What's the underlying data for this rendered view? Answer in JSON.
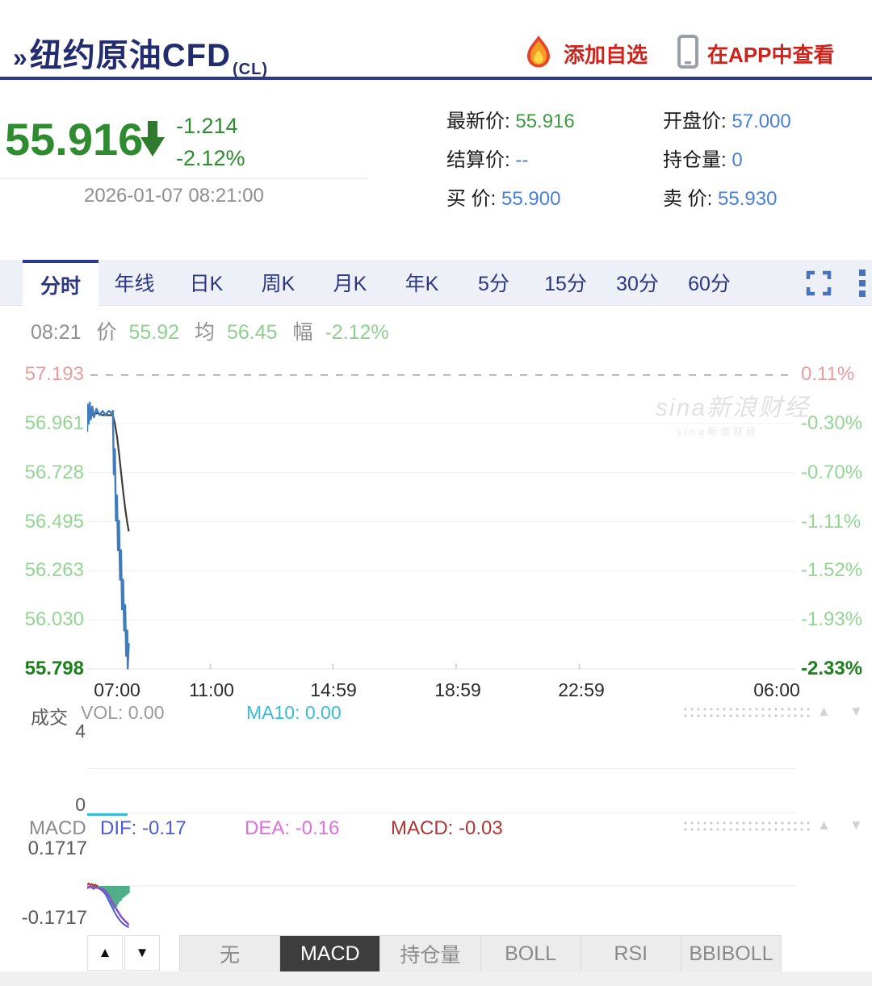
{
  "colors": {
    "navy": "#2b3a8c",
    "title_navy": "#232c6e",
    "red": "#cd231b",
    "green": "#2f8b2f",
    "light_green": "#93d693",
    "dark_green": "#1c801c",
    "pink": "#ec9c9c",
    "blue_value": "#4a7fd4",
    "cyan": "#36bdd8",
    "price_line": "#3f7cbe",
    "avg_line": "#3c3c3c",
    "dif_blue": "#4a5bd4",
    "dea_magenta": "#e06ee0",
    "macd_red": "#b03434",
    "hist_green": "#4fae88"
  },
  "header": {
    "title_prefix": "»",
    "title": "纽约原油CFD",
    "symbol": "(CL)",
    "add_watchlist": "添加自选",
    "view_in_app": "在APP中查看"
  },
  "quote": {
    "price": "55.916",
    "change": "-1.214",
    "change_pct": "-2.12%",
    "timestamp": "2026-01-07 08:21:00",
    "fields": [
      {
        "label": "最新价:",
        "value": "55.916",
        "color": "green"
      },
      {
        "label": "开盘价:",
        "value": "57.000",
        "color": "blue"
      },
      {
        "label": "结算价:",
        "value": "--",
        "color": "blue"
      },
      {
        "label": "持仓量:",
        "value": "0",
        "color": "blue"
      },
      {
        "label": "买  价:",
        "value": "55.900",
        "color": "blue"
      },
      {
        "label": "卖  价:",
        "value": "55.930",
        "color": "blue"
      }
    ]
  },
  "toolbar": {
    "tabs": [
      "分时",
      "年线",
      "日K",
      "周K",
      "月K",
      "年K",
      "5分",
      "15分",
      "30分",
      "60分"
    ],
    "active_tab": "分时"
  },
  "status_line": {
    "time": "08:21",
    "price_label": "价",
    "price": "55.92",
    "avg_label": "均",
    "avg": "56.45",
    "amp_label": "幅",
    "amplitude": "-2.12%"
  },
  "watermark": "sina新浪财经",
  "chart_data": [
    {
      "name": "main",
      "type": "line",
      "x_labels": [
        "07:00",
        "11:00",
        "14:59",
        "18:59",
        "22:59",
        "06:00"
      ],
      "y_ticks_left": [
        "57.193",
        "56.961",
        "56.728",
        "56.495",
        "56.263",
        "56.030",
        "55.798"
      ],
      "y_ticks_right": [
        "0.11%",
        "-0.30%",
        "-0.70%",
        "-1.11%",
        "-1.52%",
        "-1.93%",
        "-2.33%"
      ],
      "ylim": [
        55.798,
        57.193
      ],
      "x_range": [
        "07:00",
        "06:00"
      ],
      "ref_line": {
        "value": 57.193,
        "style": "dashed"
      },
      "series": [
        {
          "name": "price",
          "points": [
            [
              "07:00",
              56.92
            ],
            [
              "07:01",
              57.05
            ],
            [
              "07:03",
              56.96
            ],
            [
              "07:05",
              57.06
            ],
            [
              "07:07",
              56.98
            ],
            [
              "07:10",
              57.04
            ],
            [
              "07:13",
              56.99
            ],
            [
              "07:18",
              57.03
            ],
            [
              "07:24",
              57.0
            ],
            [
              "07:30",
              57.02
            ],
            [
              "07:36",
              57.0
            ],
            [
              "07:42",
              57.02
            ],
            [
              "07:47",
              57.01
            ],
            [
              "07:50",
              57.02
            ],
            [
              "07:52",
              56.72
            ],
            [
              "07:54",
              56.84
            ],
            [
              "07:56",
              56.5
            ],
            [
              "07:58",
              56.62
            ],
            [
              "08:00",
              56.36
            ],
            [
              "08:02",
              56.5
            ],
            [
              "08:04",
              56.22
            ],
            [
              "08:06",
              56.36
            ],
            [
              "08:08",
              56.08
            ],
            [
              "08:10",
              56.22
            ],
            [
              "08:12",
              55.98
            ],
            [
              "08:14",
              56.1
            ],
            [
              "08:16",
              55.86
            ],
            [
              "08:18",
              55.98
            ],
            [
              "08:19",
              55.8
            ],
            [
              "08:21",
              55.92
            ]
          ]
        },
        {
          "name": "average",
          "points": [
            [
              "07:02",
              56.99
            ],
            [
              "07:10",
              57.0
            ],
            [
              "07:20",
              57.01
            ],
            [
              "07:30",
              57.0
            ],
            [
              "07:40",
              57.0
            ],
            [
              "07:50",
              57.0
            ],
            [
              "07:54",
              56.96
            ],
            [
              "07:58",
              56.9
            ],
            [
              "08:02",
              56.82
            ],
            [
              "08:06",
              56.73
            ],
            [
              "08:10",
              56.64
            ],
            [
              "08:14",
              56.56
            ],
            [
              "08:18",
              56.49
            ],
            [
              "08:21",
              56.45
            ]
          ]
        }
      ]
    },
    {
      "name": "volume",
      "type": "bar",
      "label": "成交",
      "vol_text": "VOL: 0.00",
      "ma10_text": "MA10: 0.00",
      "y_max": "4",
      "y_min": "0",
      "values": [],
      "ma10": [
        [
          "07:00",
          0
        ],
        [
          "08:21",
          0
        ]
      ]
    },
    {
      "name": "macd",
      "type": "macd",
      "label": "MACD",
      "dif_text": "DIF: -0.17",
      "dea_text": "DEA: -0.16",
      "macd_text": "MACD: -0.03",
      "y_max": "0.1717",
      "y_min": "-0.1717",
      "ylim": [
        -0.1717,
        0.1717
      ],
      "hist": [
        [
          "07:00",
          -0.004
        ],
        [
          "07:03",
          -0.006
        ],
        [
          "07:06",
          -0.005
        ],
        [
          "07:09",
          -0.008
        ],
        [
          "07:12",
          -0.006
        ],
        [
          "07:15",
          -0.009
        ],
        [
          "07:18",
          -0.007
        ],
        [
          "07:21",
          -0.01
        ],
        [
          "07:24",
          -0.008
        ],
        [
          "07:27",
          -0.012
        ],
        [
          "07:30",
          -0.015
        ],
        [
          "07:33",
          -0.02
        ],
        [
          "07:36",
          -0.03
        ],
        [
          "07:39",
          -0.045
        ],
        [
          "07:42",
          -0.055
        ],
        [
          "07:45",
          -0.07
        ],
        [
          "07:48",
          -0.08
        ],
        [
          "07:51",
          -0.09
        ],
        [
          "07:54",
          -0.095
        ],
        [
          "07:57",
          -0.085
        ],
        [
          "08:00",
          -0.075
        ],
        [
          "08:03",
          -0.065
        ],
        [
          "08:06",
          -0.06
        ],
        [
          "08:09",
          -0.05
        ],
        [
          "08:12",
          -0.045
        ],
        [
          "08:15",
          -0.04
        ],
        [
          "08:18",
          -0.035
        ],
        [
          "08:21",
          -0.03
        ]
      ],
      "dif": [
        [
          "07:00",
          -0.01
        ],
        [
          "07:06",
          -0.002
        ],
        [
          "07:12",
          -0.012
        ],
        [
          "07:18",
          -0.006
        ],
        [
          "07:24",
          -0.012
        ],
        [
          "07:30",
          -0.02
        ],
        [
          "07:36",
          -0.035
        ],
        [
          "07:42",
          -0.06
        ],
        [
          "07:48",
          -0.085
        ],
        [
          "07:54",
          -0.11
        ],
        [
          "08:00",
          -0.13
        ],
        [
          "08:06",
          -0.147
        ],
        [
          "08:12",
          -0.158
        ],
        [
          "08:18",
          -0.166
        ],
        [
          "08:21",
          -0.17
        ]
      ],
      "dea": [
        [
          "07:00",
          -0.006
        ],
        [
          "07:06",
          -0.004
        ],
        [
          "07:12",
          -0.008
        ],
        [
          "07:18",
          -0.007
        ],
        [
          "07:24",
          -0.009
        ],
        [
          "07:30",
          -0.013
        ],
        [
          "07:36",
          -0.022
        ],
        [
          "07:42",
          -0.04
        ],
        [
          "07:48",
          -0.062
        ],
        [
          "07:54",
          -0.085
        ],
        [
          "08:00",
          -0.105
        ],
        [
          "08:06",
          -0.125
        ],
        [
          "08:12",
          -0.14
        ],
        [
          "08:18",
          -0.152
        ],
        [
          "08:21",
          -0.16
        ]
      ],
      "macd_line": [
        [
          "07:00",
          0.004
        ],
        [
          "07:03",
          0.01
        ],
        [
          "07:06",
          0.002
        ],
        [
          "07:09",
          0.008
        ],
        [
          "07:12",
          0.001
        ],
        [
          "07:15",
          0.006
        ],
        [
          "07:18",
          0.0
        ],
        [
          "07:21",
          0.003
        ]
      ]
    }
  ],
  "indicator_bar": {
    "up": "▲",
    "down": "▼",
    "items": [
      "无",
      "MACD",
      "持仓量",
      "BOLL",
      "RSI",
      "BBIBOLL"
    ],
    "active": "MACD"
  },
  "scroll_arrows": {
    "up": "▲",
    "down": "▼"
  }
}
